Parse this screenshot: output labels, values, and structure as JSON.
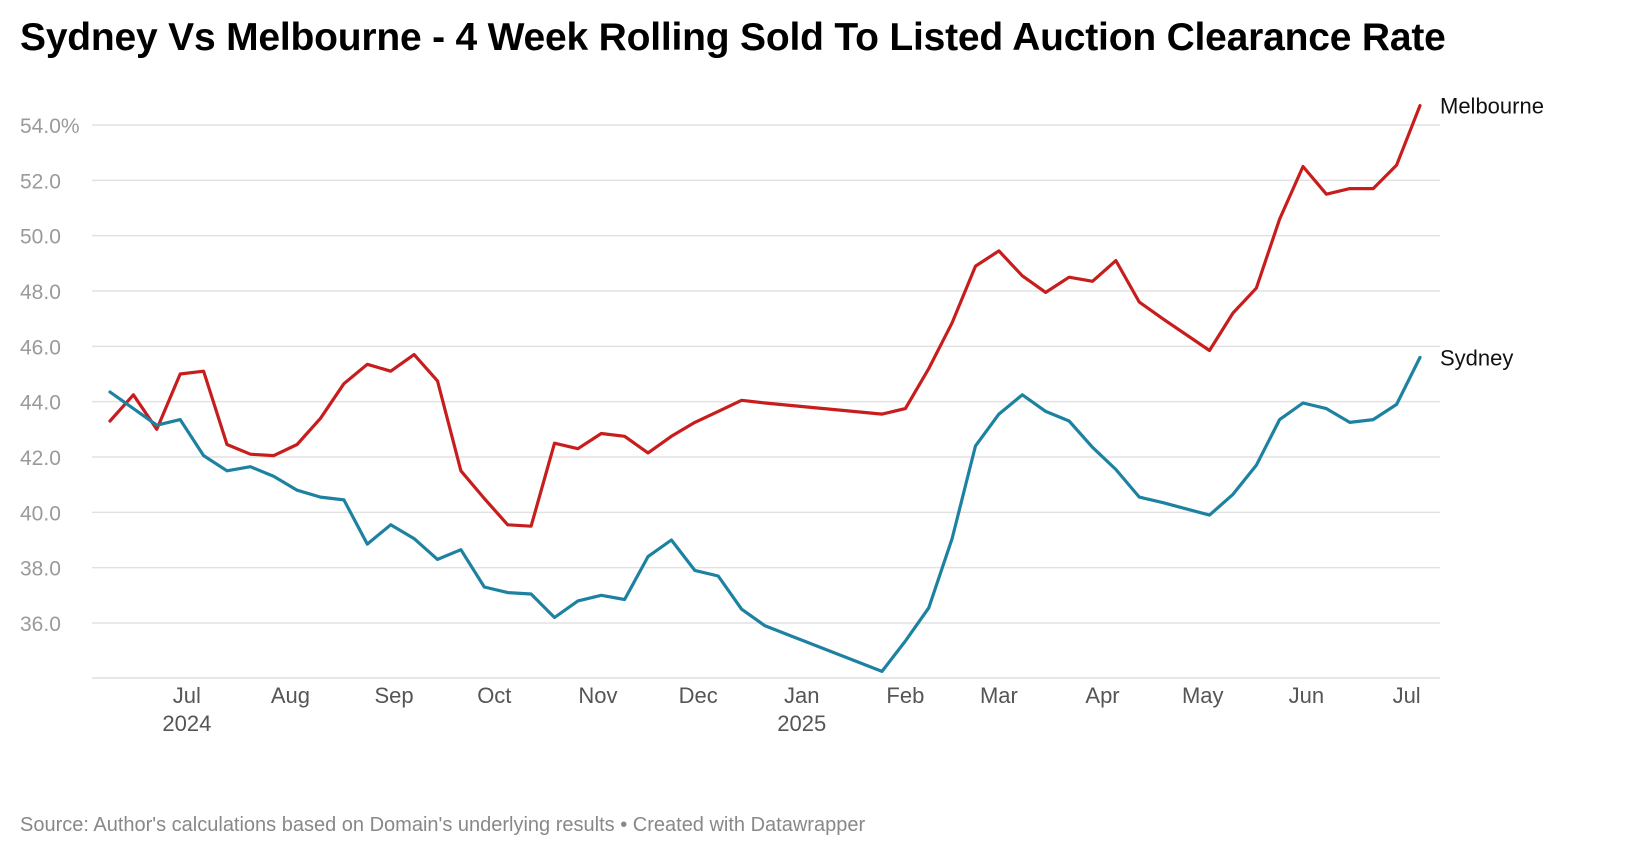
{
  "title": "Sydney Vs Melbourne - 4 Week Rolling Sold To Listed Auction Clearance Rate",
  "footer": {
    "source": "Source: Author's calculations based on Domain's underlying results",
    "separator": "•",
    "credit": "Created with Datawrapper"
  },
  "chart_data": {
    "type": "line",
    "title": "Sydney Vs Melbourne - 4 Week Rolling Sold To Listed Auction Clearance Rate",
    "xlabel": "",
    "ylabel": "",
    "ylim": [
      34.3,
      55.0
    ],
    "grid": true,
    "y_ticks": [
      {
        "value": 54,
        "label": "54.0%"
      },
      {
        "value": 52,
        "label": "52.0"
      },
      {
        "value": 50,
        "label": "50.0"
      },
      {
        "value": 48,
        "label": "48.0"
      },
      {
        "value": 46,
        "label": "46.0"
      },
      {
        "value": 44,
        "label": "44.0"
      },
      {
        "value": 42,
        "label": "42.0"
      },
      {
        "value": 40,
        "label": "40.0"
      },
      {
        "value": 38,
        "label": "38.0"
      },
      {
        "value": 36,
        "label": "36.0"
      }
    ],
    "x_ticks": [
      {
        "date": "2024-07-01",
        "label": "Jul",
        "year": "2024"
      },
      {
        "date": "2024-08-01",
        "label": "Aug",
        "year": ""
      },
      {
        "date": "2024-09-01",
        "label": "Sep",
        "year": ""
      },
      {
        "date": "2024-10-01",
        "label": "Oct",
        "year": ""
      },
      {
        "date": "2024-11-01",
        "label": "Nov",
        "year": ""
      },
      {
        "date": "2024-12-01",
        "label": "Dec",
        "year": ""
      },
      {
        "date": "2025-01-01",
        "label": "Jan",
        "year": "2025"
      },
      {
        "date": "2025-02-01",
        "label": "Feb",
        "year": ""
      },
      {
        "date": "2025-03-01",
        "label": "Mar",
        "year": ""
      },
      {
        "date": "2025-04-01",
        "label": "Apr",
        "year": ""
      },
      {
        "date": "2025-05-01",
        "label": "May",
        "year": ""
      },
      {
        "date": "2025-06-01",
        "label": "Jun",
        "year": ""
      },
      {
        "date": "2025-07-01",
        "label": "Jul",
        "year": ""
      }
    ],
    "x_range": [
      "2024-06-08",
      "2025-07-05"
    ],
    "x": [
      "2024-06-08",
      "2024-06-15",
      "2024-06-22",
      "2024-06-29",
      "2024-07-06",
      "2024-07-13",
      "2024-07-20",
      "2024-07-27",
      "2024-08-03",
      "2024-08-10",
      "2024-08-17",
      "2024-08-24",
      "2024-08-31",
      "2024-09-07",
      "2024-09-14",
      "2024-09-21",
      "2024-09-28",
      "2024-10-05",
      "2024-10-12",
      "2024-10-19",
      "2024-10-26",
      "2024-11-02",
      "2024-11-09",
      "2024-11-16",
      "2024-11-23",
      "2024-11-30",
      "2024-12-07",
      "2024-12-14",
      "2024-12-21",
      "2025-01-25",
      "2025-02-01",
      "2025-02-08",
      "2025-02-15",
      "2025-02-22",
      "2025-03-01",
      "2025-03-08",
      "2025-03-15",
      "2025-03-22",
      "2025-03-29",
      "2025-04-05",
      "2025-04-12",
      "2025-04-19",
      "2025-05-03",
      "2025-05-10",
      "2025-05-17",
      "2025-05-24",
      "2025-05-31",
      "2025-06-07",
      "2025-06-14",
      "2025-06-21",
      "2025-06-28",
      "2025-07-05"
    ],
    "series": [
      {
        "name": "Melbourne",
        "color": "#c71e1d",
        "values": [
          43.3,
          44.25,
          43.0,
          45.0,
          45.1,
          42.45,
          42.1,
          42.05,
          42.45,
          43.4,
          44.65,
          45.35,
          45.1,
          45.7,
          44.75,
          41.5,
          40.5,
          39.55,
          39.5,
          42.5,
          42.3,
          42.85,
          42.75,
          42.15,
          42.75,
          43.25,
          43.65,
          44.05,
          43.95,
          43.55,
          43.75,
          45.2,
          46.85,
          48.9,
          49.45,
          48.55,
          47.95,
          48.5,
          48.35,
          49.1,
          47.6,
          47.0,
          45.85,
          47.2,
          48.1,
          50.6,
          52.5,
          51.5,
          51.7,
          51.7,
          52.55,
          54.7
        ]
      },
      {
        "name": "Sydney",
        "color": "#1d81a2",
        "values": [
          44.35,
          43.75,
          43.15,
          43.35,
          42.05,
          41.5,
          41.65,
          41.3,
          40.8,
          40.55,
          40.45,
          38.85,
          39.55,
          39.05,
          38.3,
          38.65,
          37.3,
          37.1,
          37.05,
          36.2,
          36.8,
          37.0,
          36.85,
          38.4,
          39.0,
          37.9,
          37.7,
          36.5,
          35.9,
          34.25,
          35.35,
          36.55,
          39.05,
          42.4,
          43.55,
          44.25,
          43.65,
          43.3,
          42.35,
          41.55,
          40.55,
          40.35,
          39.9,
          40.65,
          41.7,
          43.35,
          43.95,
          43.75,
          43.25,
          43.35,
          43.9,
          45.6
        ]
      }
    ]
  }
}
